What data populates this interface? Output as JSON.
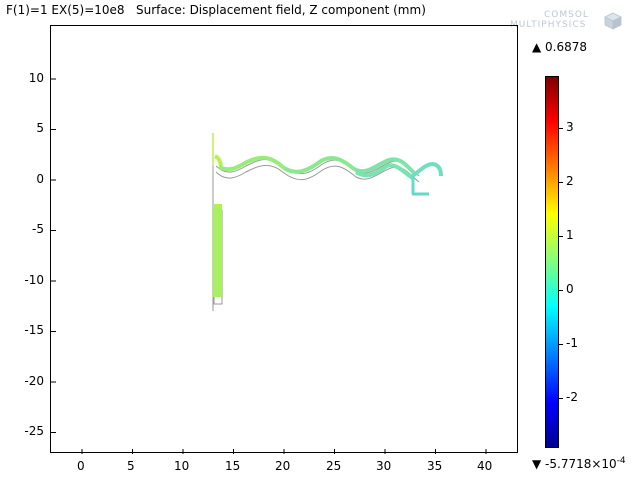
{
  "title": "F(1)=1 EX(5)=10e8   Surface: Displacement field, Z component (mm)",
  "logo": {
    "line1": "COMSOL",
    "line2": "MULTIPHYSICS"
  },
  "axes": {
    "x_ticks": [
      "0",
      "5",
      "10",
      "15",
      "20",
      "25",
      "30",
      "35",
      "40"
    ],
    "y_ticks": [
      "10",
      "5",
      "0",
      "-5",
      "-10",
      "-15",
      "-20",
      "-25"
    ]
  },
  "colorbar": {
    "max_label": "▲ 0.6878",
    "min_label": "▼ -5.7718×10",
    "min_exp": "-4",
    "ticks": [
      "3",
      "2",
      "1",
      "0",
      "-1",
      "-2"
    ]
  }
}
